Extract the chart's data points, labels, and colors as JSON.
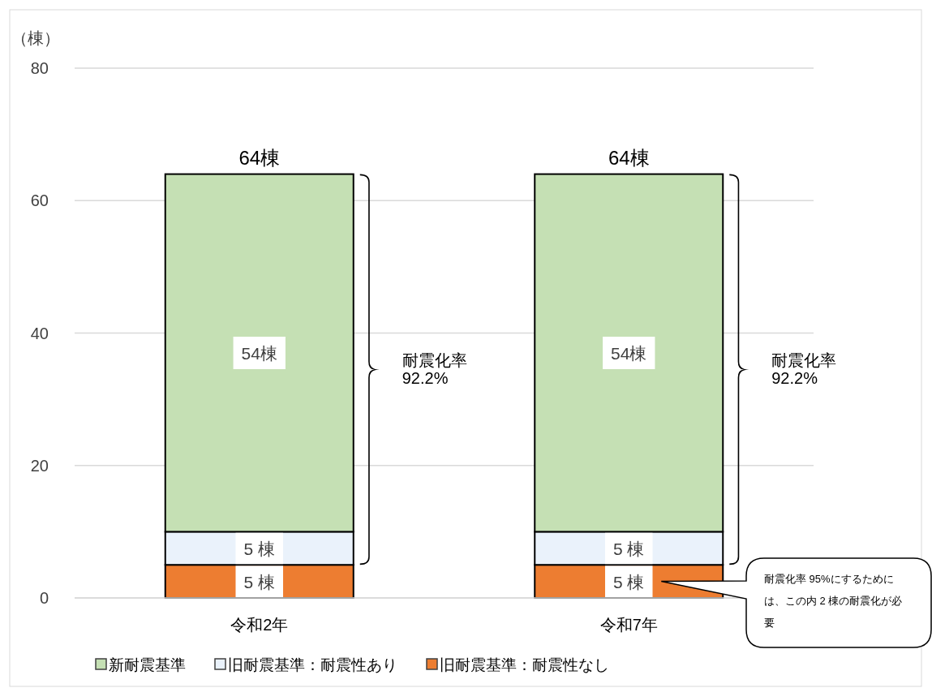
{
  "chart_data": {
    "type": "bar",
    "stacked": true,
    "ylabel": "（棟）",
    "categories": [
      "令和2年",
      "令和7年"
    ],
    "series": [
      {
        "name": "旧耐震基準：耐震性なし",
        "color": "#ed7d31",
        "values": [
          5,
          5
        ],
        "value_labels": [
          "5 棟",
          "5 棟"
        ]
      },
      {
        "name": "旧耐震基準：耐震性あり",
        "color": "#eaf2fb",
        "values": [
          5,
          5
        ],
        "value_labels": [
          "5 棟",
          "5 棟"
        ]
      },
      {
        "name": "新耐震基準",
        "color": "#c5e0b4",
        "values": [
          54,
          54
        ],
        "value_labels": [
          "54棟",
          "54棟"
        ]
      }
    ],
    "totals": [
      "64棟",
      "64棟"
    ],
    "ylim": [
      0,
      80
    ],
    "yticks": [
      0,
      20,
      40,
      60,
      80
    ],
    "grid": "y",
    "legend": "bottom",
    "annotations": [
      "耐震化率\n92.2%",
      "耐震化率\n92.2%",
      "耐震化率 95%にするためには、この内 2 棟の耐震化が必要"
    ]
  }
}
